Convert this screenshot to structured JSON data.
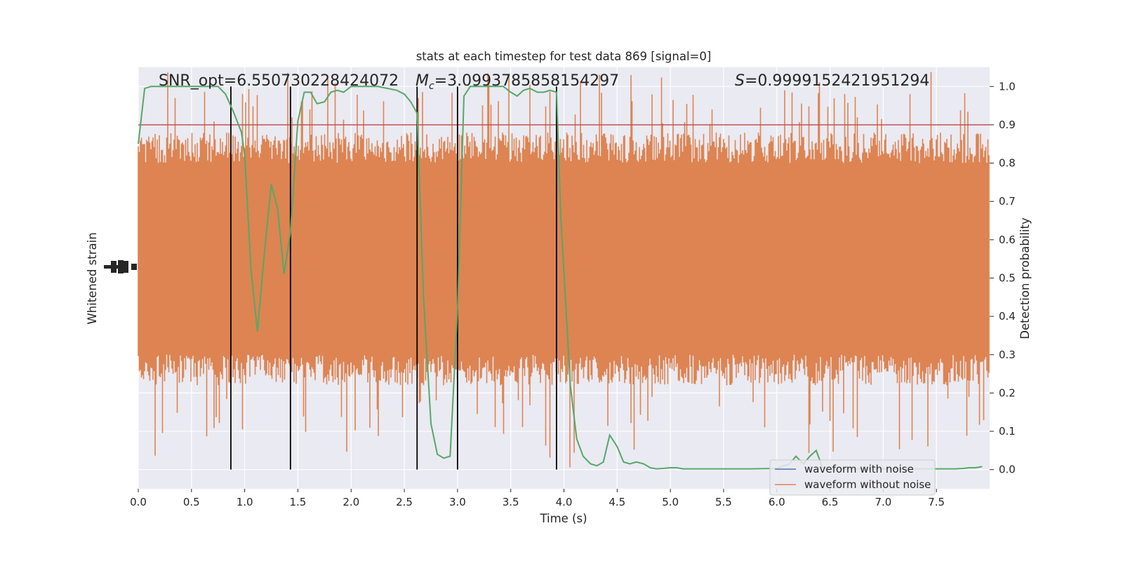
{
  "chart_data": {
    "type": "line",
    "title": "stats at each timestep for test data 869 [signal=0]",
    "xlabel": "Time (s)",
    "ylabel_left": "Whitened strain",
    "ylabel_right": "Detection probability",
    "xlim": [
      0,
      8
    ],
    "ylim_right": [
      -0.05,
      1.05
    ],
    "x_ticks": [
      0.0,
      0.5,
      1.0,
      1.5,
      2.0,
      2.5,
      3.0,
      3.5,
      4.0,
      4.5,
      5.0,
      5.5,
      6.0,
      6.5,
      7.0,
      7.5
    ],
    "x_tick_labels": [
      "0.0",
      "0.5",
      "1.0",
      "1.5",
      "2.0",
      "2.5",
      "3.0",
      "3.5",
      "4.0",
      "4.5",
      "5.0",
      "5.5",
      "6.0",
      "6.5",
      "7.0",
      "7.5"
    ],
    "right_ticks": [
      0.0,
      0.1,
      0.2,
      0.3,
      0.4,
      0.5,
      0.6,
      0.7,
      0.8,
      0.9,
      1.0
    ],
    "right_tick_labels": [
      "0.0",
      "0.1",
      "0.2",
      "0.3",
      "0.4",
      "0.5",
      "0.6",
      "0.7",
      "0.8",
      "0.9",
      "1.0"
    ],
    "grid": true,
    "legend_position": "lower-right",
    "annotations": {
      "snr": "SNR_opt=6.550730228424072",
      "mc_symbol": "M",
      "mc_subscript": "c",
      "mc_value": "=3.0993785858154297",
      "s_symbol": "S",
      "s_value": "=0.9999152421951294"
    },
    "threshold": 0.9,
    "event_lines_x": [
      0.87,
      1.43,
      2.62,
      3.0,
      3.93
    ],
    "noise_band": {
      "core_min": 0.3,
      "core_max": 0.8,
      "peak_min": 0.0,
      "peak_max": 0.99
    },
    "series": [
      {
        "name": "waveform with noise",
        "color": "#4c72b0",
        "role": "strain"
      },
      {
        "name": "waveform without noise",
        "color": "#dd8452",
        "role": "strain"
      },
      {
        "role": "detection probability",
        "color": "#55a868",
        "x": [
          0.0,
          0.06,
          0.12,
          0.25,
          0.5,
          0.75,
          0.82,
          0.9,
          0.97,
          1.0,
          1.06,
          1.12,
          1.18,
          1.25,
          1.31,
          1.37,
          1.43,
          1.5,
          1.56,
          1.62,
          1.68,
          1.75,
          1.81,
          1.87,
          1.93,
          2.0,
          2.25,
          2.43,
          2.5,
          2.56,
          2.62,
          2.68,
          2.75,
          2.81,
          2.87,
          2.93,
          3.0,
          3.06,
          3.12,
          3.25,
          3.43,
          3.5,
          3.56,
          3.62,
          3.68,
          3.75,
          3.81,
          3.87,
          3.93,
          3.97,
          4.06,
          4.12,
          4.18,
          4.25,
          4.31,
          4.37,
          4.43,
          4.5,
          4.56,
          4.62,
          4.68,
          4.75,
          4.81,
          4.87,
          4.93,
          5.0,
          5.06,
          5.12,
          5.25,
          5.5,
          5.75,
          6.0,
          6.12,
          6.18,
          6.25,
          6.31,
          6.37,
          6.43,
          6.5,
          6.75,
          7.0,
          7.25,
          7.5,
          7.68,
          7.75,
          7.81,
          7.87,
          7.93
        ],
        "y": [
          0.85,
          0.995,
          1.0,
          1.0,
          1.0,
          1.0,
          0.98,
          0.93,
          0.88,
          0.82,
          0.52,
          0.36,
          0.55,
          0.745,
          0.68,
          0.51,
          0.62,
          0.91,
          0.985,
          0.985,
          0.955,
          0.96,
          0.985,
          0.99,
          0.985,
          1.0,
          1.0,
          0.99,
          0.98,
          0.96,
          0.93,
          0.45,
          0.12,
          0.04,
          0.03,
          0.035,
          0.42,
          0.975,
          1.0,
          1.0,
          1.0,
          0.985,
          0.975,
          0.99,
          0.995,
          0.985,
          0.985,
          0.99,
          0.985,
          0.66,
          0.22,
          0.08,
          0.035,
          0.015,
          0.01,
          0.02,
          0.09,
          0.06,
          0.02,
          0.015,
          0.02,
          0.015,
          0.005,
          0.002,
          0.003,
          0.005,
          0.005,
          0.002,
          0.002,
          0.002,
          0.002,
          0.003,
          0.015,
          0.035,
          0.015,
          0.035,
          0.05,
          0.005,
          0.002,
          0.002,
          0.002,
          0.002,
          0.002,
          0.002,
          0.003,
          0.005,
          0.005,
          0.008
        ]
      }
    ]
  }
}
